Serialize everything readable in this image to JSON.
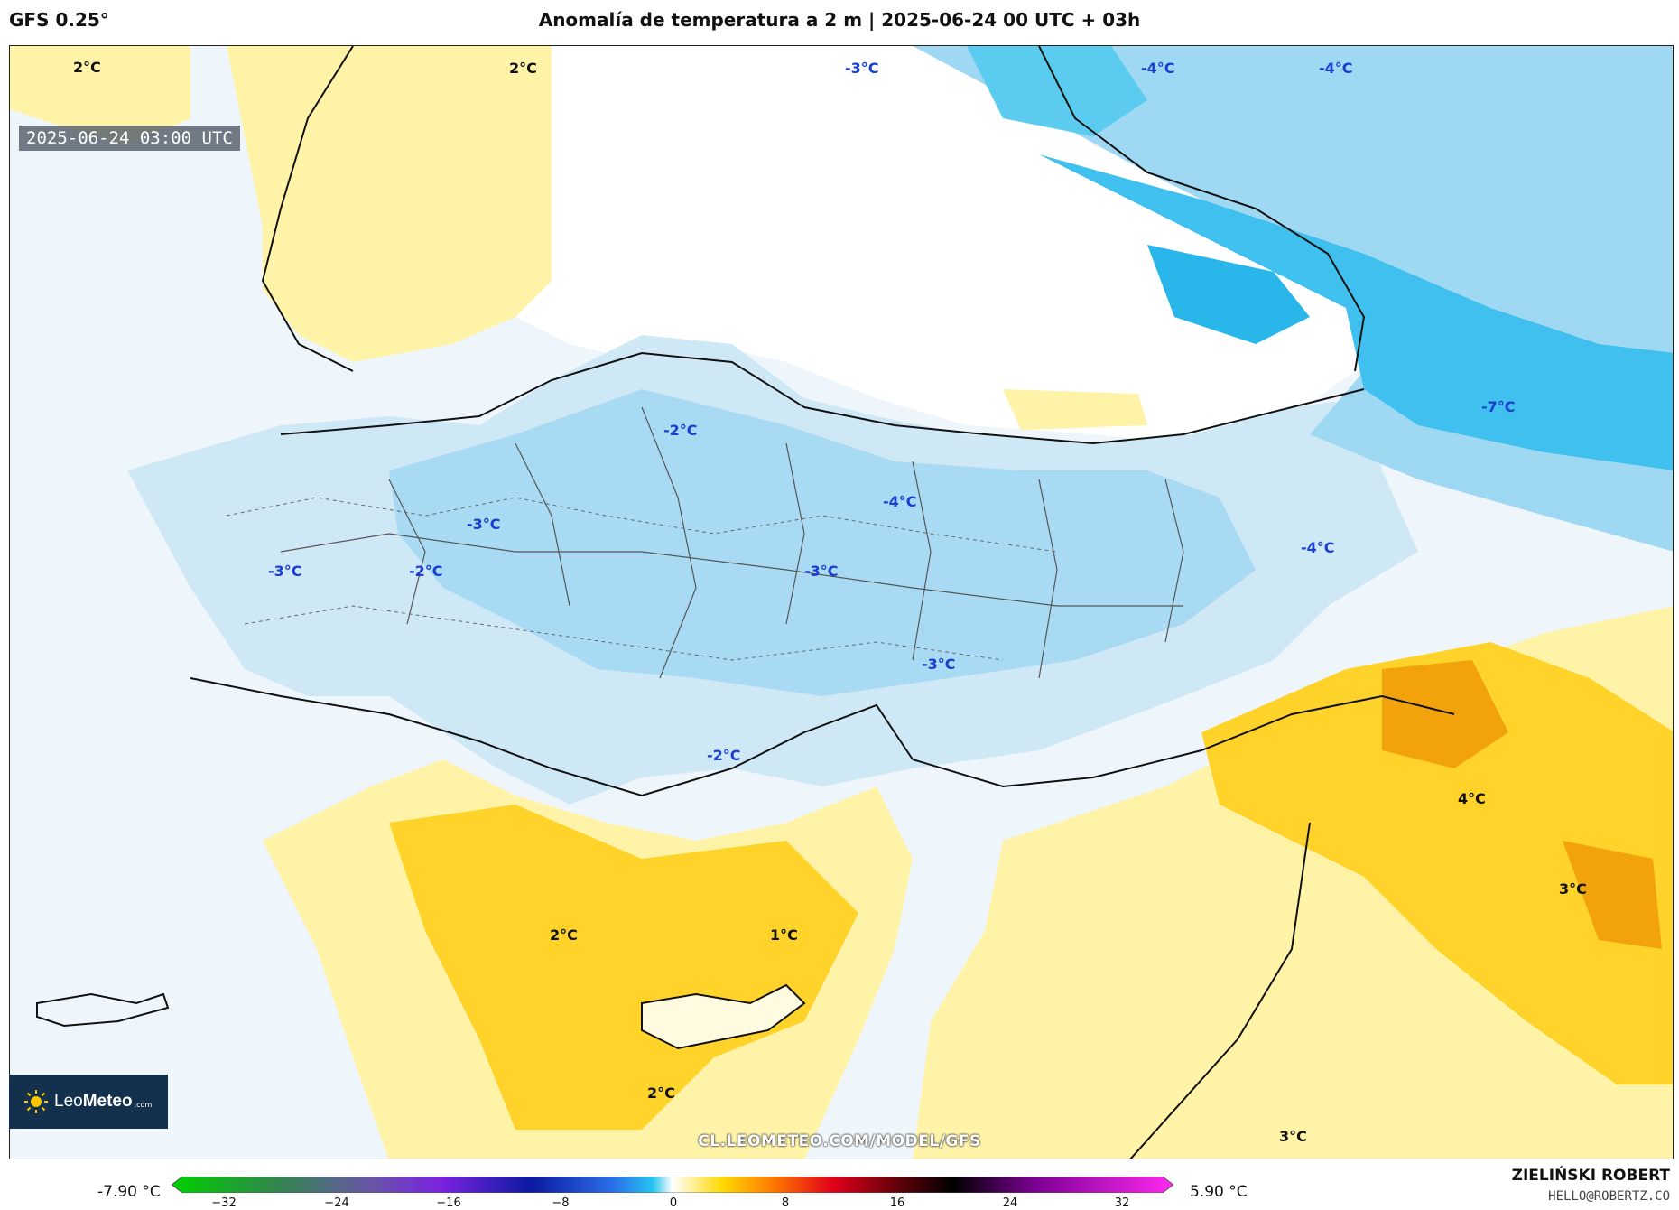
{
  "header": {
    "model": "GFS 0.25°",
    "title": "Anomalía de temperatura a 2 m | 2025-06-24 00 UTC + 03h"
  },
  "map": {
    "timestamp": "2025-06-24 03:00 UTC",
    "labels": [
      {
        "text": "2°C",
        "kind": "warm"
      },
      {
        "text": "2°C",
        "kind": "warm"
      },
      {
        "text": "-3°C",
        "kind": "cold"
      },
      {
        "text": "-4°C",
        "kind": "cold"
      },
      {
        "text": "-4°C",
        "kind": "cold"
      },
      {
        "text": "-7°C",
        "kind": "cold"
      },
      {
        "text": "-2°C",
        "kind": "cold"
      },
      {
        "text": "-4°C",
        "kind": "cold"
      },
      {
        "text": "-3°C",
        "kind": "cold"
      },
      {
        "text": "-3°C",
        "kind": "cold"
      },
      {
        "text": "-2°C",
        "kind": "cold"
      },
      {
        "text": "-3°C",
        "kind": "cold"
      },
      {
        "text": "-4°C",
        "kind": "cold"
      },
      {
        "text": "-3°C",
        "kind": "cold"
      },
      {
        "text": "-2°C",
        "kind": "cold"
      },
      {
        "text": "4°C",
        "kind": "warm"
      },
      {
        "text": "3°C",
        "kind": "warm"
      },
      {
        "text": "2°C",
        "kind": "warm"
      },
      {
        "text": "1°C",
        "kind": "warm"
      },
      {
        "text": "2°C",
        "kind": "warm"
      },
      {
        "text": "3°C",
        "kind": "warm"
      }
    ],
    "watermark": "CL.LEOMETEO.COM/MODEL/GFS"
  },
  "logo": {
    "prefix": "Leo",
    "brand": "Meteo",
    "domain": ".com"
  },
  "colorbar": {
    "min_label": "-7.90 °C",
    "max_label": "5.90 °C",
    "ticks": [
      "−32",
      "−24",
      "−16",
      "−8",
      "0",
      "8",
      "16",
      "24",
      "32"
    ],
    "range": [
      -32,
      32
    ]
  },
  "credit": {
    "author": "ZIELIŃSKI ROBERT",
    "email": "HELLO@ROBERTZ.CO"
  },
  "colors": {
    "cold_label": "#1a3fd0",
    "anomaly_cold_strong": "#29b6ea",
    "anomaly_cold": "#9fd8f2",
    "anomaly_cold_light": "#d6eef9",
    "anomaly_warm_light": "#fff3a8",
    "anomaly_warm": "#ffd32a",
    "anomaly_warm_strong": "#f2a30c"
  }
}
